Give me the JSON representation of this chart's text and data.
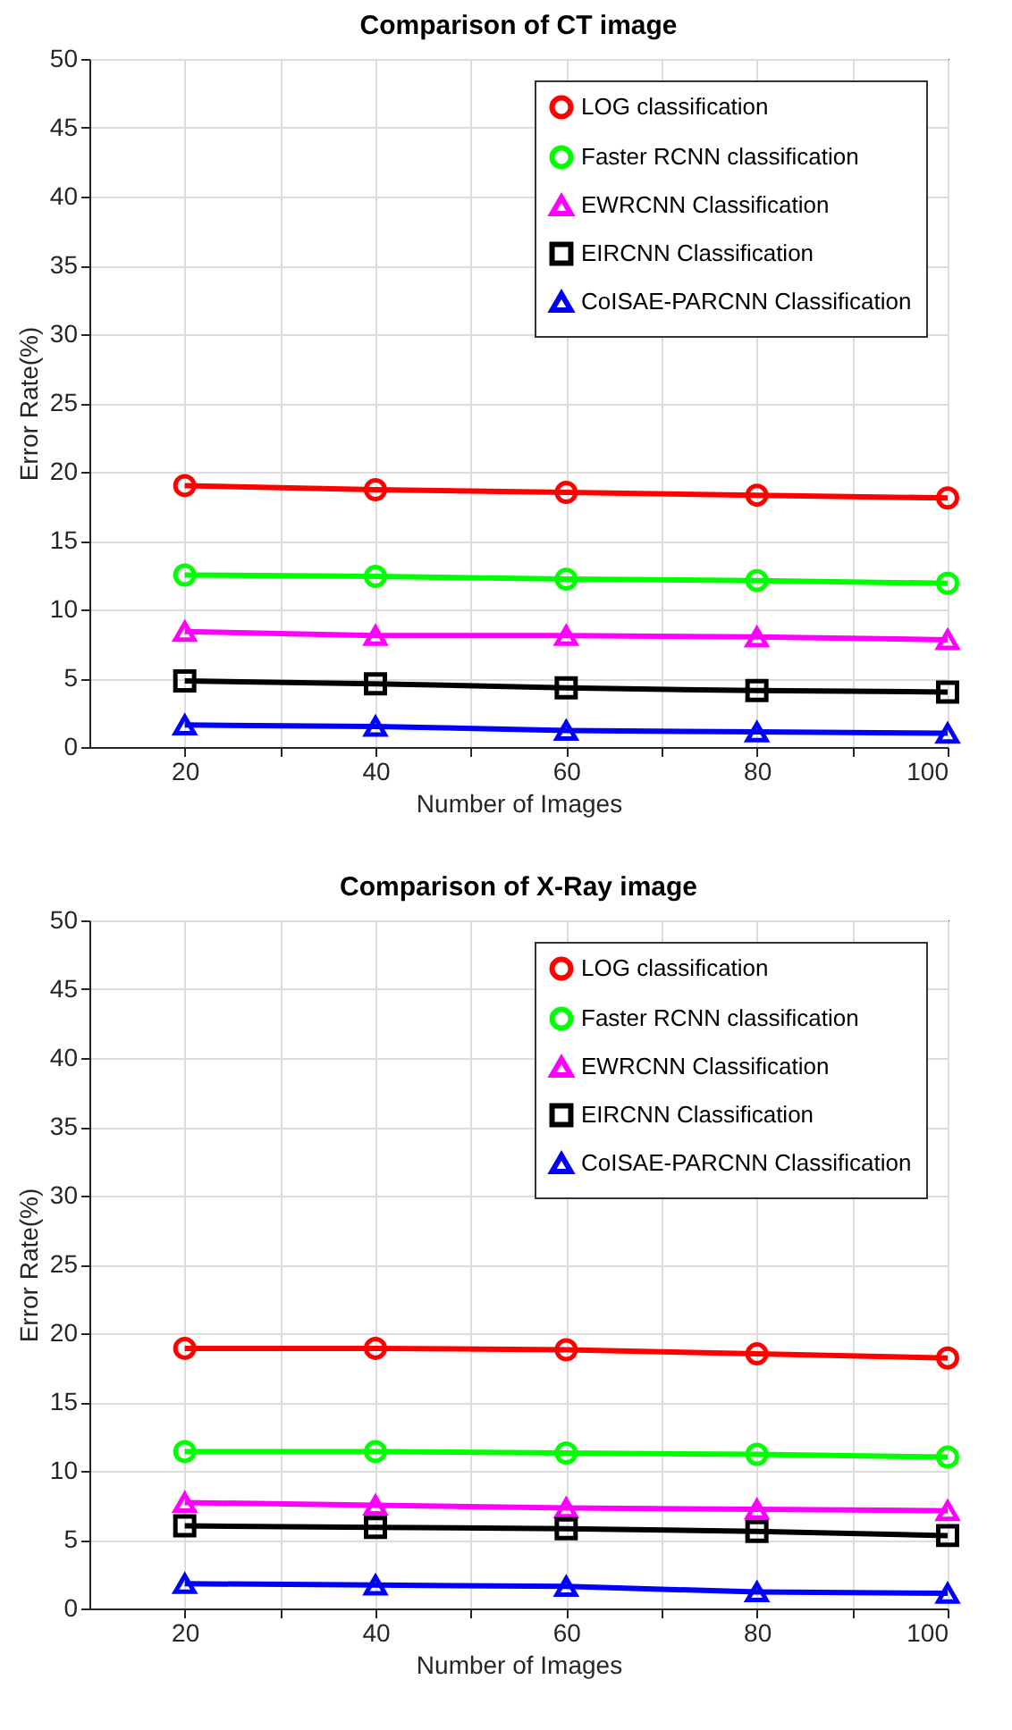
{
  "chart_data": [
    {
      "type": "line",
      "title": "Comparison of CT image",
      "xlabel": "Number of Images",
      "ylabel": "Error Rate(%)",
      "x": [
        20,
        40,
        60,
        80,
        100
      ],
      "xlim": [
        10,
        100
      ],
      "xticks": [
        20,
        {
          "value": 30,
          "label": null
        },
        40,
        {
          "value": 50,
          "label": null
        },
        60,
        {
          "value": 70,
          "label": null
        },
        80,
        {
          "value": 90,
          "label": null
        },
        100
      ],
      "ylim": [
        0,
        50
      ],
      "yticks": [
        0,
        5,
        10,
        15,
        20,
        25,
        30,
        35,
        40,
        45,
        50
      ],
      "grid": true,
      "legend": "top right",
      "line_style": "solid",
      "series": [
        {
          "name": "LOG classification",
          "color": "#ff0000",
          "marker": "circle",
          "values": [
            19.0,
            18.7,
            18.5,
            18.3,
            18.1
          ]
        },
        {
          "name": "Faster RCNN classification",
          "color": "#00ff00",
          "marker": "circle",
          "values": [
            12.5,
            12.4,
            12.2,
            12.1,
            11.9
          ]
        },
        {
          "name": "EWRCNN Classification",
          "color": "#ff00ff",
          "marker": "triangle",
          "values": [
            8.4,
            8.1,
            8.1,
            8.0,
            7.8
          ]
        },
        {
          "name": "EIRCNN Classification",
          "color": "#000000",
          "marker": "square",
          "values": [
            4.8,
            4.6,
            4.3,
            4.1,
            4.0
          ]
        },
        {
          "name": "CoISAE-PARCNN Classification",
          "color": "#0000ff",
          "marker": "triangle",
          "values": [
            1.6,
            1.5,
            1.2,
            1.1,
            1.0
          ]
        }
      ]
    },
    {
      "type": "line",
      "title": "Comparison of X-Ray image",
      "xlabel": "Number of Images",
      "ylabel": "Error Rate(%)",
      "x": [
        20,
        40,
        60,
        80,
        100
      ],
      "xlim": [
        10,
        100
      ],
      "xticks": [
        20,
        {
          "value": 30,
          "label": null
        },
        40,
        {
          "value": 50,
          "label": null
        },
        60,
        {
          "value": 70,
          "label": null
        },
        80,
        {
          "value": 90,
          "label": null
        },
        100
      ],
      "ylim": [
        0,
        50
      ],
      "yticks": [
        0,
        5,
        10,
        15,
        20,
        25,
        30,
        35,
        40,
        45,
        50
      ],
      "grid": true,
      "legend": "top right",
      "line_style": "solid",
      "series": [
        {
          "name": "LOG classification",
          "color": "#ff0000",
          "marker": "circle",
          "values": [
            18.9,
            18.9,
            18.8,
            18.5,
            18.2
          ]
        },
        {
          "name": "Faster RCNN classification",
          "color": "#00ff00",
          "marker": "circle",
          "values": [
            11.4,
            11.4,
            11.3,
            11.2,
            11.0
          ]
        },
        {
          "name": "EWRCNN Classification",
          "color": "#ff00ff",
          "marker": "triangle",
          "values": [
            7.7,
            7.5,
            7.3,
            7.2,
            7.1
          ]
        },
        {
          "name": "EIRCNN Classification",
          "color": "#000000",
          "marker": "square",
          "values": [
            6.0,
            5.9,
            5.8,
            5.6,
            5.3
          ]
        },
        {
          "name": "CoISAE-PARCNN Classification",
          "color": "#0000ff",
          "marker": "triangle",
          "values": [
            1.8,
            1.7,
            1.6,
            1.2,
            1.1
          ]
        }
      ]
    }
  ]
}
